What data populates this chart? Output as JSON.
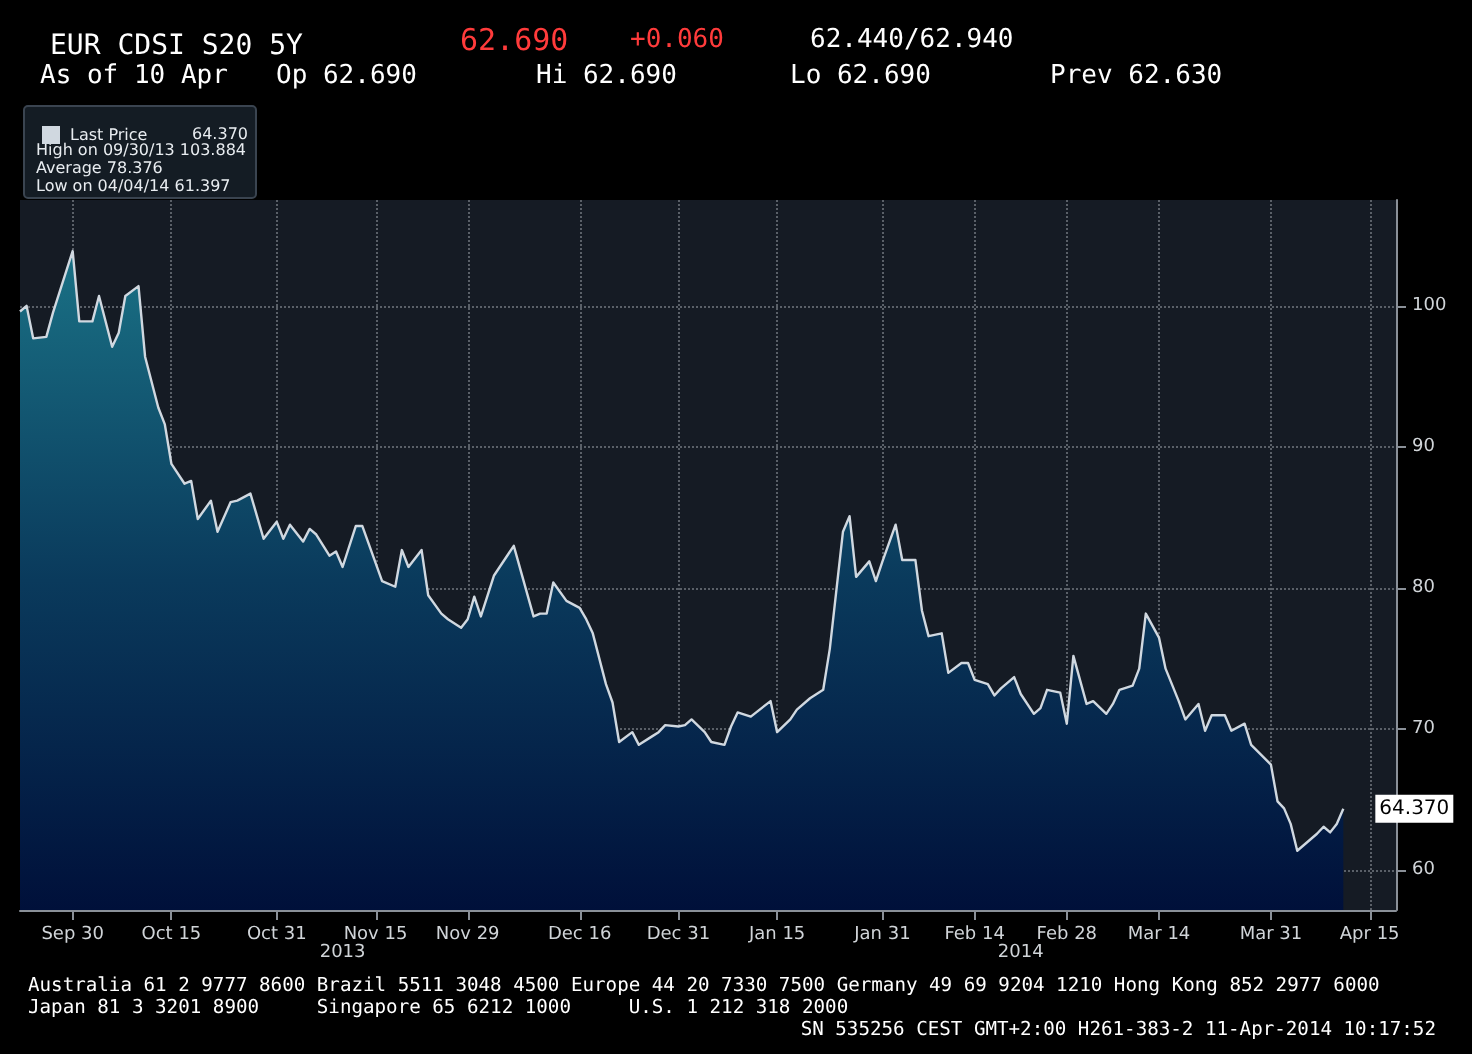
{
  "chart_data": {
    "type": "area",
    "title": "EUR CDSI S20 5Y",
    "x": [
      "2013-09-22",
      "2013-09-23",
      "2013-09-24",
      "2013-09-26",
      "2013-09-27",
      "2013-09-30",
      "2013-10-01",
      "2013-10-03",
      "2013-10-04",
      "2013-10-06",
      "2013-10-07",
      "2013-10-08",
      "2013-10-10",
      "2013-10-11",
      "2013-10-13",
      "2013-10-14",
      "2013-10-15",
      "2013-10-17",
      "2013-10-18",
      "2013-10-19",
      "2013-10-21",
      "2013-10-22",
      "2013-10-24",
      "2013-10-25",
      "2013-10-27",
      "2013-10-29",
      "2013-10-31",
      "2013-11-01",
      "2013-11-02",
      "2013-11-04",
      "2013-11-05",
      "2013-11-06",
      "2013-11-08",
      "2013-11-09",
      "2013-11-10",
      "2013-11-12",
      "2013-11-13",
      "2013-11-16",
      "2013-11-18",
      "2013-11-19",
      "2013-11-20",
      "2013-11-22",
      "2013-11-23",
      "2013-11-25",
      "2013-11-26",
      "2013-11-28",
      "2013-11-29",
      "2013-11-30",
      "2013-12-01",
      "2013-12-03",
      "2013-12-06",
      "2013-12-09",
      "2013-12-10",
      "2013-12-11",
      "2013-12-12",
      "2013-12-14",
      "2013-12-16",
      "2013-12-17",
      "2013-12-18",
      "2013-12-20",
      "2013-12-21",
      "2013-12-22",
      "2013-12-24",
      "2013-12-25",
      "2013-12-27",
      "2013-12-28",
      "2013-12-29",
      "2013-12-31",
      "2014-01-01",
      "2014-01-02",
      "2014-01-04",
      "2014-01-05",
      "2014-01-07",
      "2014-01-08",
      "2014-01-09",
      "2014-01-11",
      "2014-01-14",
      "2014-01-15",
      "2014-01-17",
      "2014-01-18",
      "2014-01-20",
      "2014-01-22",
      "2014-01-23",
      "2014-01-25",
      "2014-01-26",
      "2014-01-27",
      "2014-01-29",
      "2014-01-30",
      "2014-01-31",
      "2014-02-02",
      "2014-02-03",
      "2014-02-05",
      "2014-02-06",
      "2014-02-07",
      "2014-02-09",
      "2014-02-10",
      "2014-02-12",
      "2014-02-13",
      "2014-02-14",
      "2014-02-16",
      "2014-02-17",
      "2014-02-18",
      "2014-02-20",
      "2014-02-21",
      "2014-02-23",
      "2014-02-24",
      "2014-02-25",
      "2014-02-27",
      "2014-02-28",
      "2014-03-01",
      "2014-03-03",
      "2014-03-04",
      "2014-03-06",
      "2014-03-07",
      "2014-03-08",
      "2014-03-10",
      "2014-03-11",
      "2014-03-12",
      "2014-03-14",
      "2014-03-15",
      "2014-03-17",
      "2014-03-18",
      "2014-03-20",
      "2014-03-21",
      "2014-03-22",
      "2014-03-24",
      "2014-03-25",
      "2014-03-27",
      "2014-03-28",
      "2014-03-31",
      "2014-04-01",
      "2014-04-02",
      "2014-04-03",
      "2014-04-04",
      "2014-04-07",
      "2014-04-08",
      "2014-04-09",
      "2014-04-10",
      "2014-04-11"
    ],
    "series": [
      {
        "name": "Last Price",
        "color": "#d0d8e0",
        "values": [
          99.6,
          100.0,
          97.7,
          97.8,
          99.5,
          103.884,
          98.9,
          98.9,
          100.7,
          97.1,
          98.1,
          100.7,
          101.4,
          96.4,
          92.8,
          91.6,
          88.8,
          87.4,
          87.6,
          84.9,
          86.2,
          84.0,
          86.1,
          86.2,
          86.7,
          83.5,
          84.7,
          83.5,
          84.5,
          83.3,
          84.2,
          83.8,
          82.3,
          82.6,
          81.5,
          84.4,
          84.4,
          80.5,
          80.1,
          82.7,
          81.5,
          82.7,
          79.5,
          78.2,
          77.8,
          77.2,
          77.8,
          79.4,
          78.0,
          80.9,
          83.0,
          78.0,
          78.2,
          78.2,
          80.4,
          79.1,
          78.6,
          77.8,
          76.8,
          73.2,
          71.9,
          69.1,
          69.8,
          68.9,
          69.5,
          69.8,
          70.3,
          70.2,
          70.3,
          70.7,
          69.8,
          69.1,
          68.9,
          70.2,
          71.2,
          70.9,
          72.0,
          69.8,
          70.7,
          71.4,
          72.2,
          72.8,
          75.7,
          84.0,
          85.1,
          80.8,
          81.9,
          80.5,
          81.9,
          84.5,
          82.0,
          82.0,
          78.4,
          76.6,
          76.8,
          74.0,
          74.7,
          74.7,
          73.5,
          73.2,
          72.4,
          72.9,
          73.7,
          72.5,
          71.1,
          71.5,
          72.8,
          72.6,
          70.4,
          75.2,
          71.8,
          72.0,
          71.1,
          71.8,
          72.8,
          73.1,
          74.3,
          78.2,
          76.5,
          74.3,
          72.0,
          70.7,
          71.8,
          69.9,
          71.0,
          71.0,
          69.9,
          70.4,
          68.9,
          67.5,
          64.9,
          64.4,
          63.3,
          61.397,
          62.6,
          63.1,
          62.7,
          63.3,
          64.37
        ],
        "value_labels": [
          null,
          null,
          null,
          null,
          null,
          null,
          null,
          null,
          null,
          null,
          null,
          null,
          null,
          null,
          null,
          null,
          null,
          null,
          null,
          null,
          null,
          null,
          null,
          null,
          null,
          null,
          null,
          null,
          null,
          null,
          null,
          null,
          null,
          null,
          null,
          null,
          null,
          null,
          null,
          null,
          null,
          null,
          null,
          null,
          null,
          null,
          null,
          null,
          null,
          null,
          null,
          null,
          null,
          null,
          null,
          null,
          null,
          null,
          null,
          null,
          null,
          null,
          null,
          null,
          null,
          null,
          null,
          null,
          null,
          null,
          null,
          null,
          null,
          null,
          null,
          null,
          null,
          null,
          null,
          null,
          null,
          null,
          null,
          null,
          null,
          null,
          null,
          null,
          null,
          null,
          null,
          null,
          null,
          null,
          null,
          null,
          null,
          null,
          null,
          null,
          null,
          null,
          null,
          null,
          null,
          null,
          null,
          null,
          null,
          null,
          null,
          null,
          null,
          null,
          null,
          null,
          null,
          null,
          null,
          null,
          null,
          null,
          null,
          null,
          null,
          null,
          null,
          null,
          null,
          null,
          null,
          null,
          null,
          null,
          null,
          null,
          null,
          null,
          "64.370"
        ]
      }
    ],
    "xlim": [
      "2013-09-22",
      "2014-04-19"
    ],
    "xticks": [
      {
        "value": "2013-09-30",
        "label": "Sep 30"
      },
      {
        "value": "2013-10-15",
        "label": "Oct 15"
      },
      {
        "value": "2013-10-31",
        "label": "Oct 31"
      },
      {
        "value": "2013-11-15",
        "label": "Nov 15"
      },
      {
        "value": "2013-11-29",
        "label": "Nov 29"
      },
      {
        "value": "2013-12-16",
        "label": "Dec 16"
      },
      {
        "value": "2013-12-31",
        "label": "Dec 31"
      },
      {
        "value": "2014-01-15",
        "label": "Jan 15"
      },
      {
        "value": "2014-01-31",
        "label": "Jan 31"
      },
      {
        "value": "2014-02-14",
        "label": "Feb 14"
      },
      {
        "value": "2014-02-28",
        "label": "Feb 28"
      },
      {
        "value": "2014-03-14",
        "label": "Mar 14"
      },
      {
        "value": "2014-03-31",
        "label": "Mar 31"
      },
      {
        "value": "2014-04-15",
        "label": "Apr 15"
      }
    ],
    "x2lim": [
      "2013-09-22",
      "2014-04-19"
    ],
    "x2ticks": [
      {
        "value": "2013-11-10",
        "label": "2013"
      },
      {
        "value": "2014-02-21",
        "label": "2014"
      }
    ],
    "ylim": [
      57.2,
      107.5
    ],
    "yticks": [
      60,
      70,
      80,
      90,
      100
    ],
    "grid": true,
    "legend": "top left",
    "marker": "none",
    "line_style": "solid",
    "annotations": [
      "62.690",
      "+0.060",
      "62.440/62.940",
      "As of 10 Apr",
      "Op 62.690",
      "Hi 62.690",
      "Lo 62.690",
      "Prev 62.630",
      "High on 09/30/13 103.884",
      "Average 78.376",
      "Low on 04/04/14 61.397",
      "Australia 61 2 9777 8600 Brazil 5511 3048 4500 Europe 44 20 7330 7500 Germany 49 69 9204 1210 Hong Kong 852 2977 6000",
      "Japan 81 3 3201 8900     Singapore 65 6212 1000     U.S. 1 212 318 2000",
      "SN 535256 CEST GMT+2:00 H261-383-2 11-Apr-2014 10:17:52"
    ]
  }
}
